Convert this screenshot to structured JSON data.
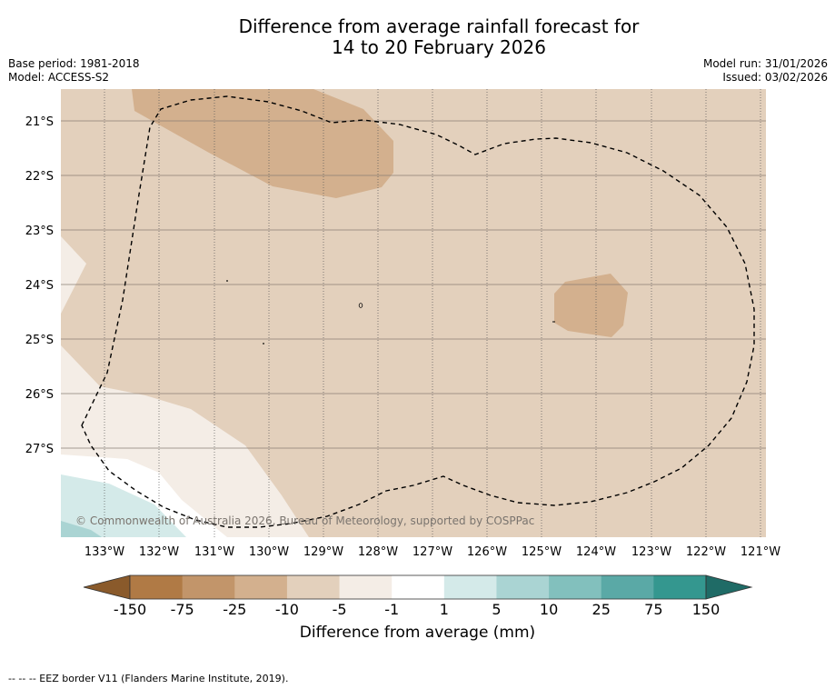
{
  "title": {
    "line1": "Difference from average rainfall forecast for",
    "line2": "14 to 20 February 2026"
  },
  "meta_left": {
    "base_period": "Base period: 1981-2018",
    "model": "Model: ACCESS-S2"
  },
  "meta_right": {
    "model_run": "Model run: 31/01/2026",
    "issued": "Issued: 03/02/2026"
  },
  "map": {
    "lat_labels": [
      "21°S",
      "22°S",
      "23°S",
      "24°S",
      "25°S",
      "26°S",
      "27°S"
    ],
    "lon_labels": [
      "133°W",
      "132°W",
      "131°W",
      "130°W",
      "129°W",
      "128°W",
      "127°W",
      "126°W",
      "125°W",
      "124°W",
      "123°W",
      "122°W",
      "121°W"
    ],
    "copyright": "© Commonwealth of Australia 2026, Bureau of Meteorology, supported by COSPPac"
  },
  "colorbar": {
    "tick_labels": [
      "-150",
      "-75",
      "-25",
      "-10",
      "-5",
      "-1",
      "1",
      "5",
      "10",
      "25",
      "75",
      "150"
    ],
    "colors": [
      "#8a5a2b",
      "#b07a45",
      "#c2956a",
      "#d3b08e",
      "#e3d0bc",
      "#f4ede6",
      "#ffffff",
      "#d4eae9",
      "#aad4d3",
      "#82c0bd",
      "#5aa9a6",
      "#34978f",
      "#1f6b66"
    ],
    "title": "Difference from average (mm)"
  },
  "footnote": "--  --  -- EEZ border V11 (Flanders Marine Institute, 2019)."
}
